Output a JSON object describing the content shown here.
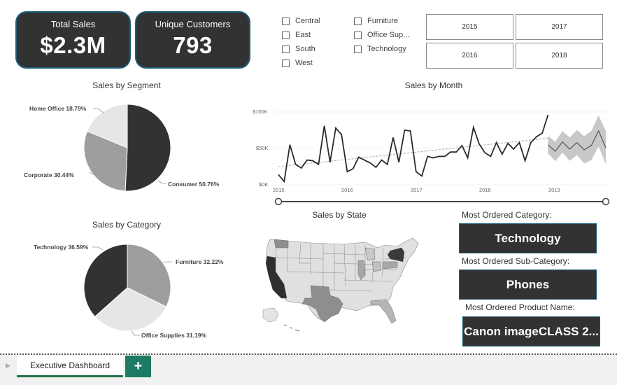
{
  "kpis": [
    {
      "label": "Total Sales",
      "value": "$2.3M"
    },
    {
      "label": "Unique Customers",
      "value": "793"
    }
  ],
  "region_filter": [
    "Central",
    "East",
    "South",
    "West"
  ],
  "category_filter": [
    "Furniture",
    "Office Sup...",
    "Technology"
  ],
  "year_filter": [
    "2015",
    "2017",
    "2016",
    "2018"
  ],
  "segment_chart": {
    "title": "Sales by Segment",
    "labels": [
      "Home Office 18.79%",
      "Corporate 30.44%",
      "Consumer 50.76%"
    ]
  },
  "month_chart": {
    "title": "Sales by Month",
    "y_ticks": [
      "$100K",
      "$50K",
      "$0K"
    ],
    "x_ticks": [
      "2015",
      "2016",
      "2017",
      "2018",
      "2019"
    ]
  },
  "category_chart": {
    "title": "Sales by Category",
    "labels": [
      "Technology 36.59%",
      "Furniture 32.22%",
      "Office Supplies 31.19%"
    ]
  },
  "state_map": {
    "title": "Sales by State"
  },
  "most_ordered": {
    "category_label": "Most Ordered Category:",
    "category_value": "Technology",
    "subcategory_label": "Most Ordered  Sub-Category:",
    "subcategory_value": "Phones",
    "product_label": "Most Ordered Product Name:",
    "product_value": "Canon imageCLASS 2..."
  },
  "tabs": {
    "active": "Executive Dashboard",
    "add": "+"
  },
  "chart_data": [
    {
      "type": "pie",
      "title": "Sales by Segment",
      "categories": [
        "Consumer",
        "Corporate",
        "Home Office"
      ],
      "values": [
        50.76,
        30.44,
        18.79
      ],
      "colors": [
        "#323232",
        "#9e9e9e",
        "#e6e6e6"
      ]
    },
    {
      "type": "pie",
      "title": "Sales by Category",
      "categories": [
        "Furniture",
        "Office Supplies",
        "Technology"
      ],
      "values": [
        32.22,
        31.19,
        36.59
      ],
      "colors": [
        "#9e9e9e",
        "#e6e6e6",
        "#323232"
      ]
    },
    {
      "type": "line",
      "title": "Sales by Month",
      "ylabel": "",
      "xlabel": "",
      "ylim": [
        0,
        100000
      ],
      "x_ticks": [
        "2015",
        "2016",
        "2017",
        "2018",
        "2019"
      ],
      "series": [
        {
          "name": "",
          "values": [
            14000,
            4500,
            55000,
            28000,
            23000,
            34000,
            33000,
            28000,
            81000,
            31000,
            78000,
            69000,
            18000,
            22000,
            38000,
            34000,
            30000,
            24000,
            34000,
            28000,
            65000,
            31000,
            75000,
            74000,
            18000,
            12000,
            39000,
            37000,
            39000,
            39000,
            45000,
            45000,
            54000,
            37000,
            79000,
            56000,
            44000,
            39000,
            58000,
            42000,
            57000,
            49000,
            58000,
            33000,
            58000,
            66000,
            71000,
            96000
          ]
        }
      ],
      "forecast": {
        "values": [
          55000,
          46000,
          59000,
          49000,
          58000,
          48000,
          54000,
          74000,
          51000
        ],
        "band": 22000
      },
      "trend": [
        25000,
        64000
      ]
    }
  ]
}
